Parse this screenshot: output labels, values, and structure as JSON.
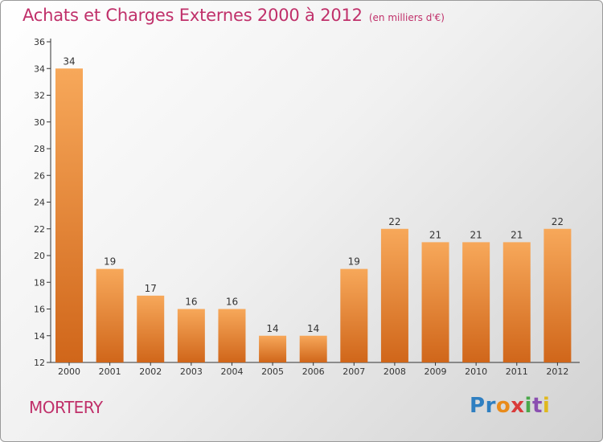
{
  "header": {
    "title": "Achats et Charges Externes 2000 à 2012",
    "subtitle": "(en milliers d'€)"
  },
  "footer": {
    "commune": "MORTERY",
    "logo": "Proxiti",
    "logo_colors": [
      "#2f7fc1",
      "#2f7fc1",
      "#e98b1b",
      "#d93a3a",
      "#4aa84a",
      "#8a4fb0",
      "#e0b81e"
    ]
  },
  "chart_data": {
    "type": "bar",
    "categories": [
      "2000",
      "2001",
      "2002",
      "2003",
      "2004",
      "2005",
      "2006",
      "2007",
      "2008",
      "2009",
      "2010",
      "2011",
      "2012"
    ],
    "values": [
      34,
      19,
      17,
      16,
      16,
      14,
      14,
      19,
      22,
      21,
      21,
      21,
      22
    ],
    "ylim": [
      12,
      36
    ],
    "yticks": [
      12,
      14,
      16,
      18,
      20,
      22,
      24,
      26,
      28,
      30,
      32,
      34,
      36
    ],
    "grid": false,
    "legend": "none",
    "bar_color_top": "#f7a85a",
    "bar_color_bottom": "#d0661a",
    "label_color": "#333333",
    "axis_color": "#333333"
  }
}
